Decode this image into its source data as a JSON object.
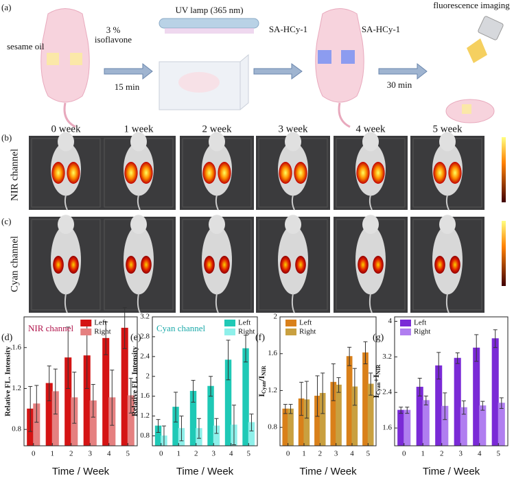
{
  "panel_a": {
    "label": "(a)",
    "left_label": "sesame oil",
    "right_label_1": "3 %",
    "right_label_2": "isoflavone",
    "step1": "15 min",
    "lamp": "UV lamp (365 nm)",
    "probe_left": "SA-HCy-1",
    "probe_right": "SA-HCy-1",
    "step2": "30 min",
    "imaging": "fluorescence imaging"
  },
  "panel_b": {
    "label": "(b)",
    "row_label": "NIR channel",
    "columns": [
      "0 week",
      "1 week",
      "2 week",
      "3 week",
      "4 week",
      "5 week"
    ]
  },
  "panel_c": {
    "label": "(c)",
    "row_label": "Cyan channel"
  },
  "chart_data": [
    {
      "type": "bar",
      "panel_label": "(d)",
      "annotation": "NIR channel",
      "annotation_color": "#b0124a",
      "categories": [
        "0",
        "1",
        "2",
        "3",
        "4",
        "5"
      ],
      "x_label": "Time / Week",
      "y_label": "Relative FL. Intensity",
      "ylim": [
        0.64,
        1.9
      ],
      "yticks": [
        0.8,
        1.2,
        1.6
      ],
      "legend": "upper left",
      "series": [
        {
          "name": "Left",
          "color": "#d41414",
          "values": [
            1.0,
            1.25,
            1.5,
            1.52,
            1.69,
            1.79
          ],
          "errors": [
            0.22,
            0.17,
            0.3,
            0.32,
            0.16,
            0.2
          ]
        },
        {
          "name": "Right",
          "color": "#e58080",
          "values": [
            1.05,
            1.17,
            1.11,
            1.08,
            1.11,
            1.13
          ],
          "errors": [
            0.18,
            0.22,
            0.25,
            0.16,
            0.27,
            0.17
          ]
        }
      ]
    },
    {
      "type": "bar",
      "panel_label": "(e)",
      "annotation": "Cyan channel",
      "annotation_color": "#1aa9a9",
      "categories": [
        "0",
        "1",
        "2",
        "3",
        "4",
        "5"
      ],
      "x_label": "Time / Week",
      "y_label": "Relative FL. Intensity",
      "ylim": [
        0.6,
        3.2
      ],
      "yticks": [
        0.8,
        1.2,
        1.6,
        2.0,
        2.4,
        2.8,
        3.2
      ],
      "legend": "upper right",
      "series": [
        {
          "name": "Left",
          "color": "#1fc9b6",
          "values": [
            1.0,
            1.38,
            1.7,
            1.8,
            2.33,
            2.56
          ],
          "errors": [
            0.13,
            0.3,
            0.22,
            0.2,
            0.4,
            0.27
          ]
        },
        {
          "name": "Right",
          "color": "#8ef0ea",
          "values": [
            0.8,
            0.95,
            0.95,
            1.0,
            1.02,
            1.07
          ],
          "errors": [
            0.2,
            0.25,
            0.2,
            0.15,
            0.4,
            0.17
          ]
        }
      ]
    },
    {
      "type": "bar",
      "panel_label": "(f)",
      "categories": [
        "0",
        "1",
        "2",
        "3",
        "4",
        "5"
      ],
      "x_label": "Time / Week",
      "y_label": [
        "I",
        "Cyan",
        "/I",
        "NIR"
      ],
      "ylim": [
        0.6,
        2.0
      ],
      "yticks": [
        0.8,
        1.2,
        1.6,
        2.0
      ],
      "legend": "upper left",
      "series": [
        {
          "name": "Left",
          "color": "#d9801a",
          "values": [
            1.0,
            1.11,
            1.14,
            1.29,
            1.57,
            1.61
          ],
          "errors": [
            0.05,
            0.18,
            0.22,
            0.2,
            0.1,
            0.12
          ]
        },
        {
          "name": "Right",
          "color": "#c9a040",
          "values": [
            1.0,
            1.1,
            1.17,
            1.26,
            1.24,
            1.27
          ],
          "errors": [
            0.05,
            0.2,
            0.22,
            0.08,
            0.2,
            0.12
          ]
        }
      ]
    },
    {
      "type": "bar",
      "panel_label": "(g)",
      "categories": [
        "0",
        "1",
        "2",
        "3",
        "4",
        "5"
      ],
      "x_label": "Time / Week",
      "y_label": [
        "I",
        "Cyan",
        "+I",
        "NIR"
      ],
      "ylim": [
        1.2,
        4.1
      ],
      "yticks": [
        1.6,
        2.4,
        3.2,
        4.0
      ],
      "legend": "upper left",
      "series": [
        {
          "name": "Left",
          "color": "#7a2ad6",
          "values": [
            2.0,
            2.52,
            3.0,
            3.17,
            3.4,
            3.61
          ],
          "errors": [
            0.07,
            0.2,
            0.3,
            0.12,
            0.3,
            0.2
          ]
        },
        {
          "name": "Right",
          "color": "#b07ef0",
          "values": [
            2.0,
            2.22,
            2.09,
            2.06,
            2.1,
            2.16
          ],
          "errors": [
            0.07,
            0.1,
            0.3,
            0.15,
            0.1,
            0.12
          ]
        }
      ]
    }
  ]
}
